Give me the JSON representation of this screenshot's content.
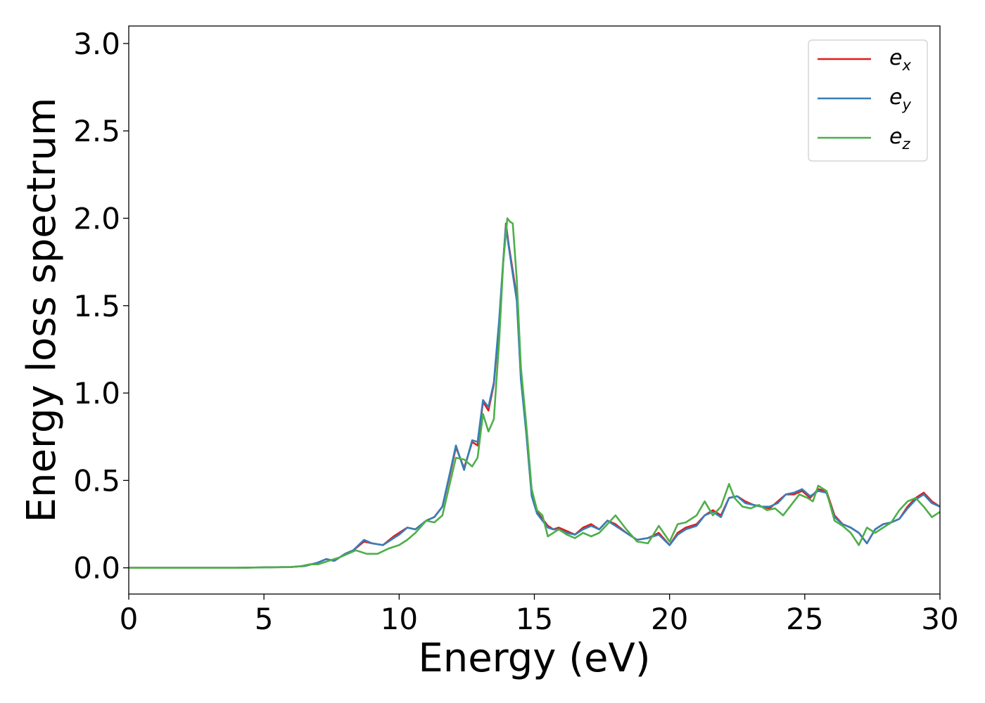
{
  "chart_data": {
    "type": "line",
    "title": "",
    "xlabel": "Energy (eV)",
    "ylabel": "Energy loss spectrum",
    "xlim": [
      0,
      30
    ],
    "ylim": [
      -0.15,
      3.1
    ],
    "xticks": [
      0,
      5,
      10,
      15,
      20,
      25,
      30
    ],
    "xtick_labels": [
      "0",
      "5",
      "10",
      "15",
      "20",
      "25",
      "30"
    ],
    "yticks": [
      0.0,
      0.5,
      1.0,
      1.5,
      2.0,
      2.5,
      3.0
    ],
    "ytick_labels": [
      "0.0",
      "0.5",
      "1.0",
      "1.5",
      "2.0",
      "2.5",
      "3.0"
    ],
    "grid": false,
    "legend_position": "top-right",
    "series": [
      {
        "name": "e_x",
        "label_base": "e",
        "label_sub": "x",
        "color": "#e41a1c",
        "x": [
          0,
          2,
          4,
          5,
          6,
          6.5,
          7,
          7.3,
          7.6,
          8,
          8.3,
          8.7,
          9,
          9.4,
          9.8,
          10,
          10.3,
          10.6,
          11,
          11.3,
          11.6,
          11.9,
          12.1,
          12.4,
          12.7,
          12.9,
          13.1,
          13.3,
          13.5,
          13.7,
          13.85,
          13.95,
          14.05,
          14.2,
          14.35,
          14.5,
          14.7,
          14.9,
          15.1,
          15.3,
          15.5,
          15.7,
          15.9,
          16.2,
          16.5,
          16.8,
          17.1,
          17.4,
          17.7,
          18,
          18.4,
          18.8,
          19.2,
          19.6,
          20,
          20.3,
          20.6,
          21,
          21.3,
          21.6,
          21.9,
          22.2,
          22.5,
          22.8,
          23.1,
          23.4,
          23.7,
          24,
          24.3,
          24.6,
          24.9,
          25.2,
          25.5,
          25.8,
          26.1,
          26.4,
          26.7,
          27,
          27.3,
          27.6,
          27.9,
          28.2,
          28.5,
          28.8,
          29.1,
          29.4,
          29.7,
          30
        ],
        "y": [
          0.0,
          0.0,
          0.0,
          0.003,
          0.005,
          0.01,
          0.03,
          0.05,
          0.04,
          0.08,
          0.1,
          0.15,
          0.14,
          0.13,
          0.18,
          0.2,
          0.23,
          0.22,
          0.27,
          0.29,
          0.35,
          0.55,
          0.69,
          0.57,
          0.72,
          0.7,
          0.95,
          0.9,
          1.05,
          1.4,
          1.75,
          1.97,
          1.85,
          1.7,
          1.55,
          1.1,
          0.78,
          0.42,
          0.32,
          0.28,
          0.24,
          0.22,
          0.23,
          0.21,
          0.19,
          0.23,
          0.25,
          0.22,
          0.27,
          0.25,
          0.2,
          0.16,
          0.17,
          0.2,
          0.13,
          0.2,
          0.23,
          0.25,
          0.3,
          0.33,
          0.3,
          0.4,
          0.41,
          0.38,
          0.36,
          0.35,
          0.34,
          0.38,
          0.42,
          0.42,
          0.44,
          0.4,
          0.45,
          0.44,
          0.3,
          0.25,
          0.23,
          0.2,
          0.14,
          0.22,
          0.25,
          0.26,
          0.28,
          0.35,
          0.4,
          0.43,
          0.38,
          0.35
        ]
      },
      {
        "name": "e_y",
        "label_base": "e",
        "label_sub": "y",
        "color": "#377eb8",
        "x": [
          0,
          2,
          4,
          5,
          6,
          6.5,
          7,
          7.3,
          7.6,
          8,
          8.3,
          8.7,
          9,
          9.4,
          9.8,
          10,
          10.3,
          10.6,
          11,
          11.3,
          11.6,
          11.9,
          12.1,
          12.4,
          12.7,
          12.9,
          13.1,
          13.3,
          13.5,
          13.7,
          13.85,
          13.95,
          14.05,
          14.2,
          14.35,
          14.5,
          14.7,
          14.9,
          15.1,
          15.3,
          15.5,
          15.7,
          15.9,
          16.2,
          16.5,
          16.8,
          17.1,
          17.4,
          17.7,
          18,
          18.4,
          18.8,
          19.2,
          19.6,
          20,
          20.3,
          20.6,
          21,
          21.3,
          21.6,
          21.9,
          22.2,
          22.5,
          22.8,
          23.1,
          23.4,
          23.7,
          24,
          24.3,
          24.6,
          24.9,
          25.2,
          25.5,
          25.8,
          26.1,
          26.4,
          26.7,
          27,
          27.3,
          27.6,
          27.9,
          28.2,
          28.5,
          28.8,
          29.1,
          29.4,
          29.7,
          30
        ],
        "y": [
          0.0,
          0.0,
          0.0,
          0.003,
          0.005,
          0.01,
          0.03,
          0.05,
          0.04,
          0.08,
          0.1,
          0.16,
          0.14,
          0.13,
          0.17,
          0.19,
          0.23,
          0.22,
          0.27,
          0.29,
          0.35,
          0.56,
          0.7,
          0.56,
          0.73,
          0.72,
          0.96,
          0.92,
          1.06,
          1.42,
          1.76,
          1.96,
          1.84,
          1.68,
          1.53,
          1.08,
          0.77,
          0.41,
          0.31,
          0.27,
          0.23,
          0.22,
          0.22,
          0.2,
          0.19,
          0.22,
          0.24,
          0.22,
          0.27,
          0.24,
          0.2,
          0.16,
          0.17,
          0.19,
          0.13,
          0.19,
          0.22,
          0.24,
          0.3,
          0.32,
          0.29,
          0.4,
          0.41,
          0.37,
          0.36,
          0.35,
          0.35,
          0.37,
          0.42,
          0.43,
          0.45,
          0.41,
          0.44,
          0.43,
          0.29,
          0.25,
          0.23,
          0.2,
          0.14,
          0.22,
          0.25,
          0.26,
          0.28,
          0.34,
          0.39,
          0.42,
          0.37,
          0.35
        ]
      },
      {
        "name": "e_z",
        "label_base": "e",
        "label_sub": "z",
        "color": "#4daf4a",
        "x": [
          0,
          2,
          4,
          5,
          6,
          6.4,
          6.7,
          7,
          7.4,
          7.8,
          8.1,
          8.4,
          8.8,
          9.2,
          9.6,
          10,
          10.3,
          10.6,
          11,
          11.3,
          11.6,
          11.9,
          12.1,
          12.4,
          12.7,
          12.9,
          13.1,
          13.3,
          13.5,
          13.7,
          13.85,
          14,
          14.1,
          14.2,
          14.35,
          14.5,
          14.7,
          14.9,
          15.1,
          15.3,
          15.5,
          15.7,
          15.9,
          16.2,
          16.5,
          16.8,
          17.1,
          17.4,
          17.7,
          18,
          18.4,
          18.8,
          19.2,
          19.6,
          20,
          20.3,
          20.6,
          21,
          21.3,
          21.6,
          21.9,
          22.2,
          22.4,
          22.7,
          23,
          23.3,
          23.6,
          23.9,
          24.2,
          24.5,
          24.8,
          25.1,
          25.3,
          25.5,
          25.8,
          26.1,
          26.4,
          26.7,
          27,
          27.3,
          27.6,
          27.9,
          28.2,
          28.5,
          28.8,
          29.1,
          29.4,
          29.7,
          30
        ],
        "y": [
          0.0,
          0.0,
          0.0,
          0.002,
          0.004,
          0.01,
          0.02,
          0.02,
          0.04,
          0.06,
          0.08,
          0.1,
          0.08,
          0.08,
          0.11,
          0.13,
          0.16,
          0.2,
          0.27,
          0.26,
          0.3,
          0.5,
          0.63,
          0.62,
          0.58,
          0.63,
          0.88,
          0.78,
          0.85,
          1.3,
          1.75,
          2.0,
          1.98,
          1.97,
          1.65,
          1.15,
          0.82,
          0.45,
          0.33,
          0.3,
          0.18,
          0.2,
          0.22,
          0.19,
          0.17,
          0.2,
          0.18,
          0.2,
          0.25,
          0.3,
          0.22,
          0.15,
          0.14,
          0.24,
          0.15,
          0.25,
          0.26,
          0.3,
          0.38,
          0.3,
          0.35,
          0.48,
          0.4,
          0.35,
          0.34,
          0.36,
          0.33,
          0.34,
          0.3,
          0.36,
          0.42,
          0.4,
          0.38,
          0.47,
          0.44,
          0.27,
          0.24,
          0.2,
          0.13,
          0.23,
          0.2,
          0.23,
          0.26,
          0.33,
          0.38,
          0.4,
          0.35,
          0.29,
          0.32
        ]
      }
    ]
  }
}
